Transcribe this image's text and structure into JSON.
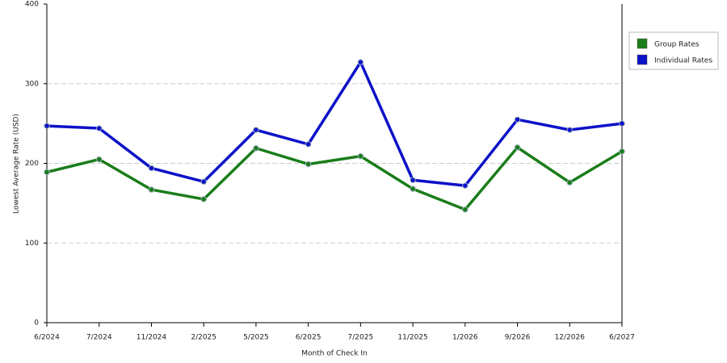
{
  "chart_data": {
    "type": "line",
    "x_label": "Month of Check In",
    "y_label": "Lowest Average Rate (USD)",
    "categories": [
      "6/2024",
      "7/2024",
      "11/2024",
      "2/2025",
      "5/2025",
      "6/2025",
      "7/2025",
      "11/2025",
      "1/2026",
      "9/2026",
      "12/2026",
      "6/2027"
    ],
    "series": [
      {
        "name": "Group Rates",
        "color": "#1a7d1a",
        "values": [
          189,
          205,
          167,
          155,
          219,
          199,
          209,
          168,
          142,
          220,
          176,
          215
        ]
      },
      {
        "name": "Individual Rates",
        "color": "#0c12c8",
        "values": [
          247,
          244,
          194,
          177,
          242,
          224,
          327,
          179,
          172,
          255,
          242,
          250
        ]
      }
    ],
    "ylim": [
      0,
      400
    ],
    "yticks": [
      0,
      100,
      200,
      300,
      400
    ],
    "grid": true,
    "legend": "top-right"
  }
}
